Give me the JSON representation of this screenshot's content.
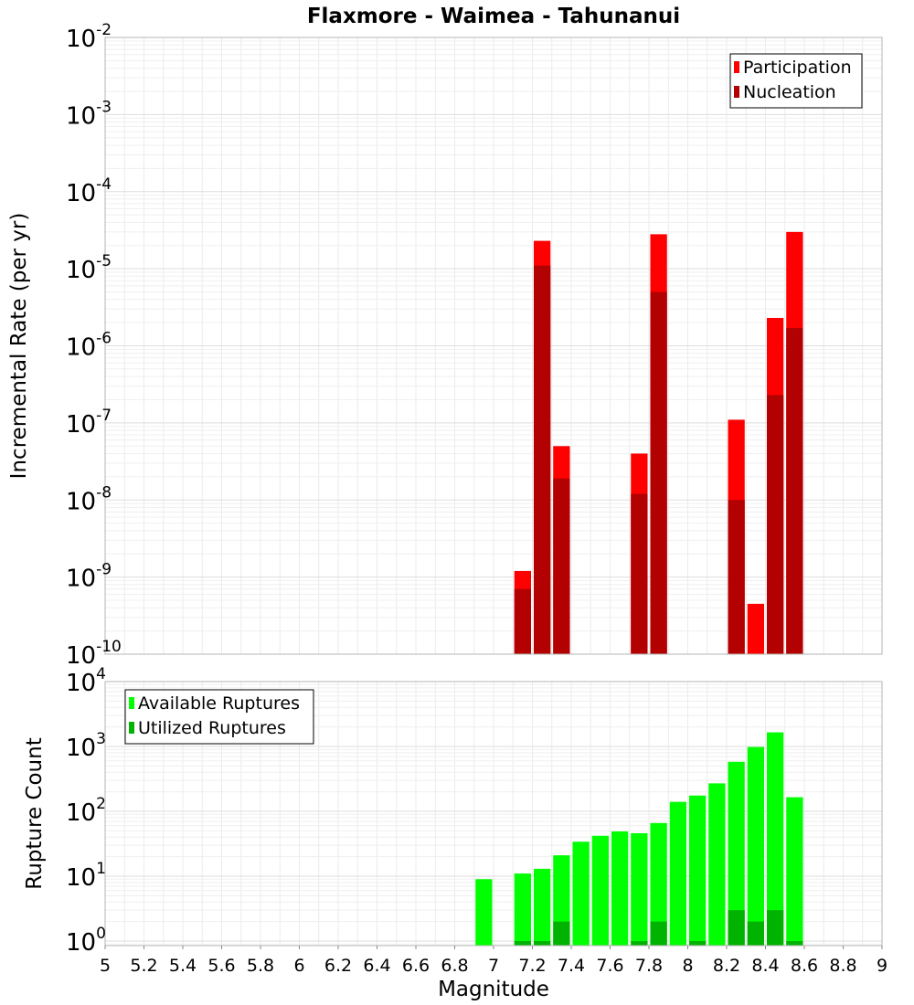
{
  "chart_data": [
    {
      "type": "bar",
      "title": "Flaxmore - Waimea - Tahunanui",
      "ylabel": "Incremental Rate (per yr)",
      "xlabel": "",
      "yscale": "log",
      "ylim_exp": [
        -10,
        -2
      ],
      "ytick_exps": [
        "-10",
        "-9",
        "-8",
        "-7",
        "-6",
        "-5",
        "-4",
        "-3",
        "-2"
      ],
      "xlim": [
        5,
        9
      ],
      "legend": [
        "Participation",
        "Nucleation"
      ],
      "colors": {
        "participation": "#ff0000",
        "nucleation": "#b30000"
      },
      "x": [
        7.15,
        7.25,
        7.35,
        7.75,
        7.85,
        8.25,
        8.35,
        8.45,
        8.55
      ],
      "series": [
        {
          "name": "Participation",
          "values": [
            1.2e-09,
            2.3e-05,
            5e-08,
            4e-08,
            2.8e-05,
            1.1e-07,
            4.5e-10,
            2.3e-06,
            3e-05
          ]
        },
        {
          "name": "Nucleation",
          "values": [
            7e-10,
            1.1e-05,
            1.9e-08,
            1.2e-08,
            5e-06,
            1e-08,
            null,
            2.3e-07,
            1.7e-06
          ]
        }
      ]
    },
    {
      "type": "bar",
      "title": "",
      "ylabel": "Rupture Count",
      "xlabel": "Magnitude",
      "yscale": "log",
      "ylim_exp": [
        -0.07,
        4
      ],
      "ytick_exps": [
        "0",
        "1",
        "2",
        "3",
        "4"
      ],
      "xlim": [
        5,
        9
      ],
      "xticks": [
        "5",
        "5.2",
        "5.4",
        "5.6",
        "5.8",
        "6",
        "6.2",
        "6.4",
        "6.6",
        "6.8",
        "7",
        "7.2",
        "7.4",
        "7.6",
        "7.8",
        "8",
        "8.2",
        "8.4",
        "8.6",
        "8.8",
        "9"
      ],
      "legend": [
        "Available Ruptures",
        "Utilized Ruptures"
      ],
      "colors": {
        "available": "#00ff00",
        "utilized": "#00b300"
      },
      "x": [
        6.95,
        7.15,
        7.25,
        7.35,
        7.45,
        7.55,
        7.65,
        7.75,
        7.85,
        7.95,
        8.05,
        8.15,
        8.25,
        8.35,
        8.45,
        8.55
      ],
      "series": [
        {
          "name": "Available Ruptures",
          "values": [
            9,
            11,
            13,
            21,
            34,
            42,
            49,
            46,
            66,
            140,
            175,
            270,
            580,
            980,
            1650,
            165
          ]
        },
        {
          "name": "Utilized Ruptures",
          "values": [
            null,
            1,
            1,
            2,
            null,
            null,
            null,
            1,
            2,
            null,
            1,
            null,
            3,
            2,
            3,
            1
          ]
        }
      ]
    }
  ]
}
